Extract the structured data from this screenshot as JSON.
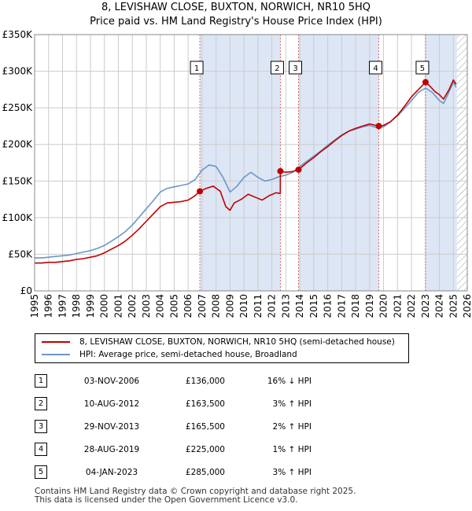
{
  "title_line1": "8, LEVISHAW CLOSE, BUXTON, NORWICH, NR10 5HQ",
  "title_line2": "Price paid vs. HM Land Registry's House Price Index (HPI)",
  "colors": {
    "price_line": "#c00000",
    "hpi_line": "#6a96c8",
    "marker_line": "#e06666",
    "shade": "#dde6f5",
    "hatch": "#999999",
    "grid": "#cccccc"
  },
  "chart_data": {
    "type": "line",
    "title": "8, LEVISHAW CLOSE, BUXTON, NORWICH, NR10 5HQ",
    "subtitle": "Price paid vs. HM Land Registry's House Price Index (HPI)",
    "xlabel": "",
    "ylabel": "",
    "xlim": [
      1995,
      2026
    ],
    "ylim": [
      0,
      350000
    ],
    "y_ticks": [
      0,
      50000,
      100000,
      150000,
      200000,
      250000,
      300000,
      350000
    ],
    "y_tick_labels": [
      "£0",
      "£50K",
      "£100K",
      "£150K",
      "£200K",
      "£250K",
      "£300K",
      "£350K"
    ],
    "x_ticks": [
      1995,
      1996,
      1997,
      1998,
      1999,
      2000,
      2001,
      2002,
      2003,
      2004,
      2005,
      2006,
      2007,
      2008,
      2009,
      2010,
      2011,
      2012,
      2013,
      2014,
      2015,
      2016,
      2017,
      2018,
      2019,
      2020,
      2021,
      2022,
      2023,
      2024,
      2025,
      2026
    ],
    "grid": true,
    "shaded_ranges": [
      [
        2006.84,
        2012.61
      ],
      [
        2013.91,
        2019.66
      ],
      [
        2023.01,
        2025.25
      ]
    ],
    "hatched_range": [
      2025.25,
      2026
    ],
    "series": [
      {
        "name": "8, LEVISHAW CLOSE, BUXTON, NORWICH, NR10 5HQ (semi-detached house)",
        "color": "#c00000",
        "x": [
          1995.0,
          1995.5,
          1996.0,
          1996.5,
          1997.0,
          1997.5,
          1998.0,
          1998.5,
          1999.0,
          1999.5,
          2000.0,
          2000.5,
          2001.0,
          2001.5,
          2002.0,
          2002.5,
          2003.0,
          2003.5,
          2004.0,
          2004.5,
          2005.0,
          2005.5,
          2006.0,
          2006.5,
          2006.84,
          2007.3,
          2007.8,
          2008.3,
          2008.7,
          2009.0,
          2009.3,
          2009.8,
          2010.3,
          2010.8,
          2011.3,
          2011.8,
          2012.3,
          2012.6,
          2012.61,
          2013.0,
          2013.5,
          2013.91,
          2014.5,
          2015.0,
          2015.5,
          2016.0,
          2016.5,
          2017.0,
          2017.5,
          2018.0,
          2018.5,
          2019.0,
          2019.66,
          2020.0,
          2020.5,
          2021.0,
          2021.5,
          2022.0,
          2022.5,
          2023.01,
          2023.3,
          2023.7,
          2024.0,
          2024.3,
          2024.7,
          2025.0,
          2025.2
        ],
        "values": [
          38000,
          38000,
          39000,
          39000,
          40000,
          41000,
          43000,
          44000,
          46000,
          48000,
          52000,
          57000,
          62000,
          68000,
          76000,
          85000,
          95000,
          105000,
          115000,
          120000,
          121000,
          122000,
          124000,
          130000,
          136000,
          140000,
          143000,
          136000,
          115000,
          110000,
          120000,
          125000,
          132000,
          128000,
          124000,
          130000,
          134000,
          133000,
          163500,
          162000,
          163000,
          165500,
          175000,
          182000,
          190000,
          197000,
          205000,
          212000,
          218000,
          222000,
          225000,
          228000,
          225000,
          226000,
          231000,
          240000,
          252000,
          265000,
          275000,
          285000,
          280000,
          272000,
          268000,
          262000,
          275000,
          288000,
          282000
        ]
      },
      {
        "name": "HPI: Average price, semi-detached house, Broadland",
        "color": "#6a96c8",
        "x": [
          1995.0,
          1995.5,
          1996.0,
          1996.5,
          1997.0,
          1997.5,
          1998.0,
          1998.5,
          1999.0,
          1999.5,
          2000.0,
          2000.5,
          2001.0,
          2001.5,
          2002.0,
          2002.5,
          2003.0,
          2003.5,
          2004.0,
          2004.5,
          2005.0,
          2005.5,
          2006.0,
          2006.5,
          2007.0,
          2007.5,
          2008.0,
          2008.5,
          2009.0,
          2009.5,
          2010.0,
          2010.5,
          2011.0,
          2011.5,
          2012.0,
          2012.5,
          2013.0,
          2013.5,
          2014.0,
          2014.5,
          2015.0,
          2015.5,
          2016.0,
          2016.5,
          2017.0,
          2017.5,
          2018.0,
          2018.5,
          2019.0,
          2019.5,
          2020.0,
          2020.5,
          2021.0,
          2021.5,
          2022.0,
          2022.5,
          2023.0,
          2023.5,
          2024.0,
          2024.3,
          2024.6,
          2025.0,
          2025.2
        ],
        "values": [
          45000,
          45000,
          46000,
          47000,
          48000,
          49000,
          51000,
          53000,
          55000,
          58000,
          62000,
          68000,
          74000,
          81000,
          90000,
          101000,
          112000,
          123000,
          135000,
          140000,
          142000,
          144000,
          146000,
          152000,
          165000,
          172000,
          170000,
          155000,
          135000,
          143000,
          155000,
          162000,
          155000,
          150000,
          152000,
          156000,
          158000,
          162000,
          170000,
          177000,
          184000,
          191000,
          199000,
          206000,
          213000,
          218000,
          221000,
          224000,
          226000,
          223000,
          224000,
          231000,
          239000,
          249000,
          260000,
          271000,
          277000,
          271000,
          260000,
          256000,
          268000,
          285000,
          278000
        ]
      }
    ],
    "sales": [
      {
        "n": "1",
        "x": 2006.84,
        "value": 136000
      },
      {
        "n": "2",
        "x": 2012.61,
        "value": 163500
      },
      {
        "n": "3",
        "x": 2013.91,
        "value": 165500
      },
      {
        "n": "4",
        "x": 2019.66,
        "value": 225000
      },
      {
        "n": "5",
        "x": 2023.01,
        "value": 285000
      }
    ]
  },
  "legend": {
    "price_label": "8, LEVISHAW CLOSE, BUXTON, NORWICH, NR10 5HQ (semi-detached house)",
    "hpi_label": "HPI: Average price, semi-detached house, Broadland"
  },
  "sales_table": [
    {
      "n": "1",
      "date": "03-NOV-2006",
      "price": "£136,000",
      "hpi": "16% ↓ HPI"
    },
    {
      "n": "2",
      "date": "10-AUG-2012",
      "price": "£163,500",
      "hpi": "3% ↑ HPI"
    },
    {
      "n": "3",
      "date": "29-NOV-2013",
      "price": "£165,500",
      "hpi": "2% ↑ HPI"
    },
    {
      "n": "4",
      "date": "28-AUG-2019",
      "price": "£225,000",
      "hpi": "1% ↑ HPI"
    },
    {
      "n": "5",
      "date": "04-JAN-2023",
      "price": "£285,000",
      "hpi": "3% ↑ HPI"
    }
  ],
  "footer": {
    "line1": "Contains HM Land Registry data © Crown copyright and database right 2025.",
    "line2": "This data is licensed under the Open Government Licence v3.0."
  }
}
